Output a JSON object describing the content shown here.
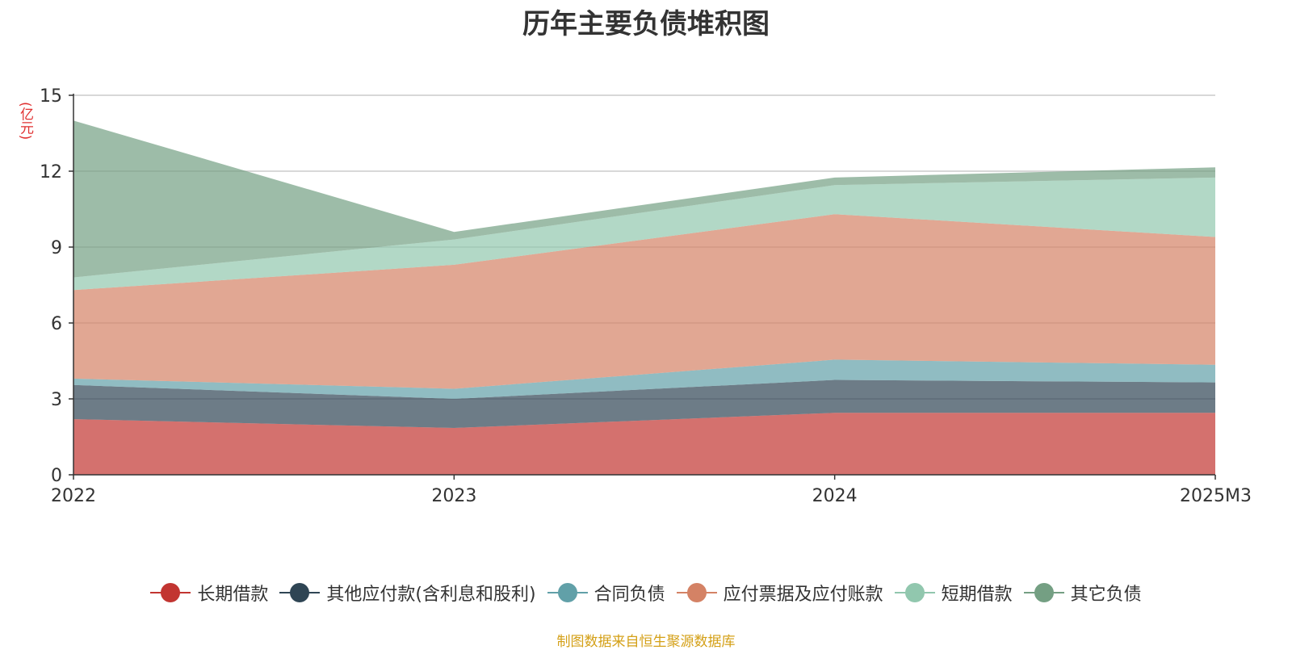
{
  "chart_data": {
    "type": "area",
    "stacked": true,
    "title": "历年主要负债堆积图",
    "ylabel": "(亿元)",
    "categories": [
      "2022",
      "2023",
      "2024",
      "2025M3"
    ],
    "ylim": [
      0,
      15
    ],
    "yticks": [
      0,
      3,
      6,
      9,
      12,
      15
    ],
    "grid": true,
    "legend_position": "bottom",
    "series": [
      {
        "name": "长期借款",
        "color": "#c23531",
        "values": [
          2.2,
          1.85,
          2.45,
          2.45
        ]
      },
      {
        "name": "其他应付款(含利息和股利)",
        "color": "#2f4554",
        "values": [
          1.35,
          1.15,
          1.3,
          1.2
        ]
      },
      {
        "name": "合同负债",
        "color": "#61a0a8",
        "values": [
          0.25,
          0.4,
          0.8,
          0.7
        ]
      },
      {
        "name": "应付票据及应付账款",
        "color": "#d48265",
        "values": [
          3.5,
          4.9,
          5.75,
          5.05
        ]
      },
      {
        "name": "短期借款",
        "color": "#91c7ae",
        "values": [
          0.5,
          1.0,
          1.15,
          2.35
        ]
      },
      {
        "name": "其它负债",
        "color": "#749f83",
        "values": [
          6.2,
          0.3,
          0.3,
          0.4
        ]
      }
    ]
  },
  "source": "制图数据来自恒生聚源数据库"
}
